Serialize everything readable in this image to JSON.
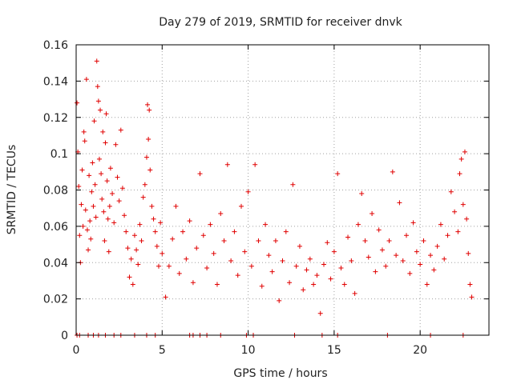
{
  "chart_data": {
    "type": "scatter",
    "title": "Day 279 of 2019, SRMTID for receiver dnvk",
    "xlabel": "GPS time / hours",
    "ylabel": "SRMTID / TECUs",
    "xlim": [
      0,
      24
    ],
    "ylim": [
      0,
      0.16
    ],
    "xticks": [
      0,
      5,
      10,
      15,
      20
    ],
    "yticks": [
      0,
      0.02,
      0.04,
      0.06,
      0.08,
      0.1,
      0.12,
      0.14,
      0.16
    ],
    "xtick_labels": [
      "0",
      "5",
      "10",
      "15",
      "20"
    ],
    "ytick_labels": [
      "0",
      "0.02",
      "0.04",
      "0.06",
      "0.08",
      "0.1",
      "0.12",
      "0.14",
      "0.16"
    ],
    "grid": true,
    "marker": "plus",
    "color": "#e00000",
    "series": [
      {
        "name": "dnvk",
        "points": [
          [
            0.05,
            0.128
          ],
          [
            0.1,
            0.101
          ],
          [
            0.15,
            0.082
          ],
          [
            0.2,
            0.055
          ],
          [
            0.25,
            0.04
          ],
          [
            0.3,
            0.072
          ],
          [
            0.35,
            0.091
          ],
          [
            0.4,
            0.06
          ],
          [
            0.45,
            0.112
          ],
          [
            0.5,
            0.107
          ],
          [
            0.55,
            0.069
          ],
          [
            0.6,
            0.141
          ],
          [
            0.65,
            0.058
          ],
          [
            0.7,
            0.047
          ],
          [
            0.75,
            0.088
          ],
          [
            0.8,
            0.063
          ],
          [
            0.85,
            0.053
          ],
          [
            0.9,
            0.079
          ],
          [
            0.95,
            0.095
          ],
          [
            1.0,
            0.071
          ],
          [
            1.05,
            0.118
          ],
          [
            1.1,
            0.083
          ],
          [
            1.15,
            0.065
          ],
          [
            1.2,
            0.151
          ],
          [
            1.25,
            0.137
          ],
          [
            1.3,
            0.129
          ],
          [
            1.35,
            0.097
          ],
          [
            1.4,
            0.124
          ],
          [
            1.45,
            0.089
          ],
          [
            1.5,
            0.075
          ],
          [
            1.55,
            0.112
          ],
          [
            1.6,
            0.068
          ],
          [
            1.65,
            0.052
          ],
          [
            1.7,
            0.106
          ],
          [
            1.75,
            0.122
          ],
          [
            1.8,
            0.085
          ],
          [
            1.85,
            0.064
          ],
          [
            1.9,
            0.046
          ],
          [
            1.95,
            0.071
          ],
          [
            2.0,
            0.092
          ],
          [
            2.1,
            0.078
          ],
          [
            2.2,
            0.062
          ],
          [
            2.3,
            0.105
          ],
          [
            2.4,
            0.087
          ],
          [
            2.5,
            0.074
          ],
          [
            2.6,
            0.113
          ],
          [
            2.7,
            0.081
          ],
          [
            2.8,
            0.066
          ],
          [
            2.9,
            0.057
          ],
          [
            3.0,
            0.048
          ],
          [
            3.1,
            0.032
          ],
          [
            3.2,
            0.042
          ],
          [
            3.3,
            0.028
          ],
          [
            3.4,
            0.055
          ],
          [
            3.5,
            0.047
          ],
          [
            3.6,
            0.039
          ],
          [
            3.7,
            0.061
          ],
          [
            3.8,
            0.052
          ],
          [
            3.9,
            0.076
          ],
          [
            4.0,
            0.083
          ],
          [
            4.1,
            0.098
          ],
          [
            4.15,
            0.127
          ],
          [
            4.2,
            0.108
          ],
          [
            4.25,
            0.124
          ],
          [
            4.3,
            0.091
          ],
          [
            4.4,
            0.071
          ],
          [
            4.5,
            0.064
          ],
          [
            4.6,
            0.057
          ],
          [
            4.7,
            0.049
          ],
          [
            4.8,
            0.038
          ],
          [
            4.9,
            0.062
          ],
          [
            5.0,
            0.045
          ],
          [
            5.2,
            0.021
          ],
          [
            5.4,
            0.038
          ],
          [
            5.6,
            0.053
          ],
          [
            5.8,
            0.071
          ],
          [
            6.0,
            0.034
          ],
          [
            6.2,
            0.057
          ],
          [
            6.4,
            0.042
          ],
          [
            6.6,
            0.063
          ],
          [
            6.8,
            0.029
          ],
          [
            7.0,
            0.048
          ],
          [
            7.2,
            0.089
          ],
          [
            7.4,
            0.055
          ],
          [
            7.6,
            0.037
          ],
          [
            7.8,
            0.061
          ],
          [
            8.0,
            0.045
          ],
          [
            8.2,
            0.028
          ],
          [
            8.4,
            0.067
          ],
          [
            8.6,
            0.052
          ],
          [
            8.8,
            0.094
          ],
          [
            9.0,
            0.041
          ],
          [
            9.2,
            0.057
          ],
          [
            9.4,
            0.033
          ],
          [
            9.6,
            0.071
          ],
          [
            9.8,
            0.046
          ],
          [
            10.0,
            0.079
          ],
          [
            10.2,
            0.038
          ],
          [
            10.4,
            0.094
          ],
          [
            10.6,
            0.052
          ],
          [
            10.8,
            0.027
          ],
          [
            11.0,
            0.061
          ],
          [
            11.2,
            0.044
          ],
          [
            11.4,
            0.035
          ],
          [
            11.6,
            0.052
          ],
          [
            11.8,
            0.019
          ],
          [
            12.0,
            0.041
          ],
          [
            12.2,
            0.057
          ],
          [
            12.4,
            0.029
          ],
          [
            12.6,
            0.083
          ],
          [
            12.8,
            0.038
          ],
          [
            13.0,
            0.049
          ],
          [
            13.2,
            0.025
          ],
          [
            13.4,
            0.036
          ],
          [
            13.6,
            0.042
          ],
          [
            13.8,
            0.028
          ],
          [
            14.0,
            0.033
          ],
          [
            14.2,
            0.012
          ],
          [
            14.4,
            0.039
          ],
          [
            14.6,
            0.051
          ],
          [
            14.8,
            0.031
          ],
          [
            15.0,
            0.046
          ],
          [
            15.2,
            0.089
          ],
          [
            15.4,
            0.037
          ],
          [
            15.6,
            0.028
          ],
          [
            15.8,
            0.054
          ],
          [
            16.0,
            0.041
          ],
          [
            16.2,
            0.023
          ],
          [
            16.4,
            0.061
          ],
          [
            16.6,
            0.078
          ],
          [
            16.8,
            0.052
          ],
          [
            17.0,
            0.043
          ],
          [
            17.2,
            0.067
          ],
          [
            17.4,
            0.035
          ],
          [
            17.6,
            0.058
          ],
          [
            17.8,
            0.047
          ],
          [
            18.0,
            0.038
          ],
          [
            18.2,
            0.052
          ],
          [
            18.4,
            0.09
          ],
          [
            18.6,
            0.044
          ],
          [
            18.8,
            0.073
          ],
          [
            19.0,
            0.041
          ],
          [
            19.2,
            0.055
          ],
          [
            19.4,
            0.034
          ],
          [
            19.6,
            0.062
          ],
          [
            19.8,
            0.046
          ],
          [
            20.0,
            0.039
          ],
          [
            20.2,
            0.052
          ],
          [
            20.4,
            0.028
          ],
          [
            20.6,
            0.044
          ],
          [
            20.8,
            0.036
          ],
          [
            21.0,
            0.049
          ],
          [
            21.2,
            0.061
          ],
          [
            21.4,
            0.042
          ],
          [
            21.6,
            0.055
          ],
          [
            21.8,
            0.079
          ],
          [
            22.0,
            0.068
          ],
          [
            22.2,
            0.057
          ],
          [
            22.3,
            0.089
          ],
          [
            22.4,
            0.097
          ],
          [
            22.5,
            0.072
          ],
          [
            22.6,
            0.101
          ],
          [
            22.7,
            0.064
          ],
          [
            22.8,
            0.045
          ],
          [
            22.9,
            0.028
          ],
          [
            23.0,
            0.021
          ],
          [
            0.05,
            0
          ],
          [
            0.2,
            0
          ],
          [
            0.7,
            0
          ],
          [
            1.0,
            0
          ],
          [
            1.3,
            0
          ],
          [
            1.7,
            0
          ],
          [
            2.2,
            0
          ],
          [
            2.6,
            0
          ],
          [
            3.4,
            0
          ],
          [
            4.1,
            0
          ],
          [
            4.6,
            0
          ],
          [
            6.6,
            0
          ],
          [
            6.8,
            0
          ],
          [
            7.2,
            0
          ],
          [
            7.6,
            0
          ],
          [
            8.4,
            0
          ],
          [
            9.9,
            0
          ],
          [
            10.3,
            0
          ],
          [
            12.7,
            0
          ],
          [
            14.3,
            0
          ],
          [
            15.2,
            0
          ],
          [
            18.1,
            0
          ],
          [
            20.6,
            0
          ],
          [
            22.5,
            0
          ]
        ]
      }
    ]
  }
}
